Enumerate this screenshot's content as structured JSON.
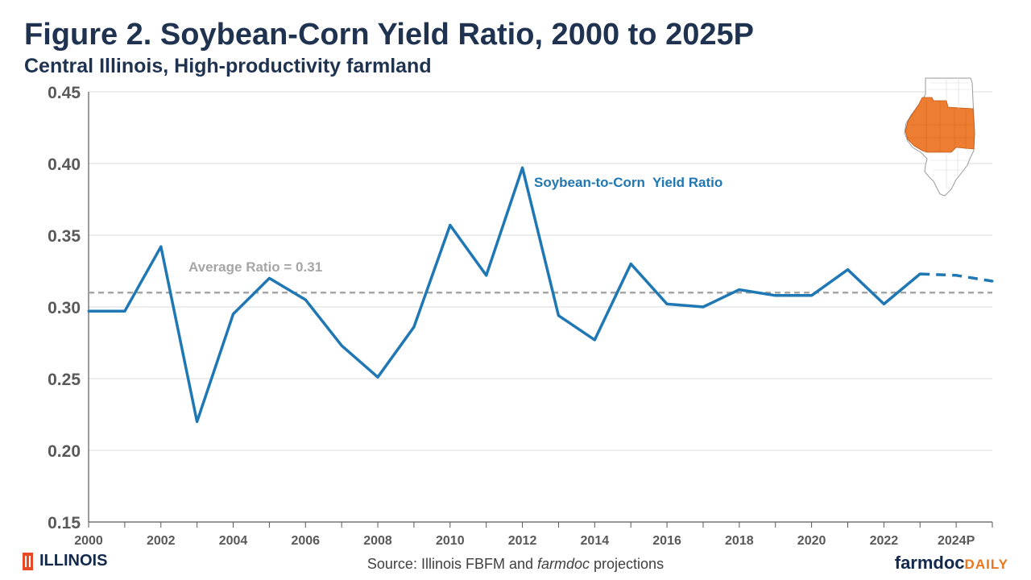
{
  "header": {
    "title": "Figure 2. Soybean-Corn Yield Ratio, 2000 to 2025P",
    "subtitle": "Central Illinois, High-productivity farmland"
  },
  "footer": {
    "source_prefix": "Source: Illinois FBFM and ",
    "source_italic": "farmdoc",
    "source_suffix": " projections",
    "logo_left": "ILLINOIS",
    "logo_right_main": "farmdoc",
    "logo_right_accent": "DAILY"
  },
  "colors": {
    "series": "#1f77b4",
    "average_line": "#a6a6a6",
    "map_highlight": "#ed7d31",
    "title": "#1f3350"
  },
  "chart_data": {
    "type": "line",
    "title": "Figure 2. Soybean-Corn Yield Ratio, 2000 to 2025P",
    "subtitle": "Central Illinois, High-productivity farmland",
    "xlabel": "",
    "ylabel": "",
    "xlim": [
      2000,
      2025
    ],
    "ylim": [
      0.15,
      0.45
    ],
    "y_ticks": [
      "0.15",
      "0.20",
      "0.25",
      "0.30",
      "0.35",
      "0.40",
      "0.45"
    ],
    "x_tick_labels": [
      "2000",
      "2002",
      "2004",
      "2006",
      "2008",
      "2010",
      "2012",
      "2014",
      "2016",
      "2018",
      "2020",
      "2022",
      "2024P"
    ],
    "grid": "horizontal",
    "series": [
      {
        "name": "Soybean-to-Corn  Yield Ratio",
        "x": [
          2000,
          2001,
          2002,
          2003,
          2004,
          2005,
          2006,
          2007,
          2008,
          2009,
          2010,
          2011,
          2012,
          2013,
          2014,
          2015,
          2016,
          2017,
          2018,
          2019,
          2020,
          2021,
          2022,
          2023
        ],
        "values": [
          0.297,
          0.297,
          0.342,
          0.22,
          0.295,
          0.32,
          0.305,
          0.273,
          0.251,
          0.286,
          0.357,
          0.322,
          0.397,
          0.294,
          0.277,
          0.33,
          0.302,
          0.3,
          0.312,
          0.308,
          0.308,
          0.326,
          0.302,
          0.323
        ],
        "style": "solid"
      },
      {
        "name": "",
        "x": [
          2023,
          2024,
          2025
        ],
        "values": [
          0.323,
          0.322,
          0.318
        ],
        "style": "dashed"
      }
    ],
    "reference_line": {
      "label": "Average Ratio = 0.31",
      "value": 0.31,
      "style": "dashed"
    }
  }
}
